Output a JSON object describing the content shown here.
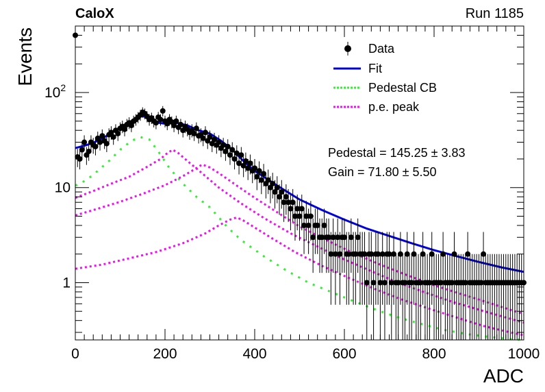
{
  "header": {
    "experiment": "CaloX",
    "run": "Run 1185"
  },
  "chart_data": {
    "type": "scatter",
    "xlabel": "ADC",
    "ylabel": "Events",
    "xlim": [
      0,
      1000
    ],
    "ylim": [
      0.25,
      500
    ],
    "yscale": "log",
    "x_ticks": [
      "0",
      "200",
      "400",
      "600",
      "800",
      "1000"
    ],
    "y_ticks": [
      {
        "value": 1,
        "label": "1"
      },
      {
        "value": 10,
        "label": "10"
      },
      {
        "value": 100,
        "label": "10",
        "exponent": "2"
      }
    ],
    "legend": {
      "placement": "top-right",
      "entries": [
        {
          "label": "Data",
          "style": "marker",
          "color": "#000000"
        },
        {
          "label": "Fit",
          "style": "solid",
          "color": "#0000dd"
        },
        {
          "label": "Pedestal CB",
          "style": "dotted",
          "color": "#33ee33"
        },
        {
          "label": "p.e. peak",
          "style": "dotted",
          "color": "#ee11ee"
        }
      ]
    },
    "annotations": [
      {
        "label": "Pedestal",
        "value": "145.25",
        "error": "3.83"
      },
      {
        "label": "Gain",
        "value": "71.80",
        "error": "5.50"
      }
    ],
    "fit": {
      "pedestal": 145.25,
      "gain": 71.8
    },
    "data_points": {
      "x": [
        0,
        5,
        10,
        15,
        20,
        25,
        30,
        35,
        40,
        45,
        50,
        55,
        60,
        65,
        70,
        75,
        80,
        85,
        90,
        95,
        100,
        105,
        110,
        115,
        120,
        125,
        130,
        135,
        140,
        145,
        150,
        155,
        160,
        165,
        170,
        175,
        180,
        185,
        190,
        195,
        200,
        205,
        210,
        215,
        220,
        225,
        230,
        235,
        240,
        245,
        250,
        255,
        260,
        265,
        270,
        275,
        280,
        285,
        290,
        295,
        300,
        305,
        310,
        315,
        320,
        325,
        330,
        335,
        340,
        345,
        350,
        355,
        360,
        365,
        370,
        375,
        380,
        385,
        390,
        395,
        400,
        405,
        410,
        415,
        420,
        425,
        430,
        435,
        440,
        445,
        450,
        455,
        460,
        465,
        470,
        475,
        480,
        485,
        490,
        495,
        500,
        505,
        510,
        515,
        520,
        525,
        530,
        535,
        540,
        545,
        550,
        555,
        560,
        565,
        570,
        575,
        580,
        585,
        590,
        595,
        600,
        605,
        610,
        615,
        620,
        625,
        630,
        635,
        640,
        645,
        650,
        655,
        660,
        665,
        670,
        675,
        680,
        685,
        690,
        695,
        700,
        705,
        710,
        715,
        720,
        725,
        730,
        735,
        740,
        745,
        750,
        755,
        760,
        765,
        770,
        775,
        780,
        785,
        790,
        795,
        800,
        805,
        810,
        815,
        820,
        825,
        830,
        835,
        840,
        845,
        850,
        855,
        860,
        865,
        870,
        875,
        880,
        885,
        890,
        895,
        900,
        905,
        910,
        915,
        920,
        925,
        930,
        935,
        940,
        945,
        950,
        955,
        960,
        965,
        970,
        975,
        980,
        985,
        990,
        995,
        1000
      ],
      "y": [
        400,
        21,
        20,
        25,
        30,
        22,
        24,
        30,
        28,
        27,
        33,
        30,
        35,
        31,
        29,
        36,
        38,
        34,
        40,
        37,
        42,
        44,
        41,
        46,
        48,
        45,
        50,
        52,
        55,
        58,
        62,
        60,
        56,
        52,
        54,
        50,
        48,
        55,
        52,
        64,
        50,
        47,
        52,
        49,
        45,
        50,
        43,
        46,
        40,
        44,
        41,
        38,
        40,
        37,
        42,
        35,
        36,
        33,
        38,
        31,
        34,
        29,
        32,
        28,
        30,
        26,
        28,
        24,
        27,
        22,
        25,
        20,
        23,
        18,
        22,
        17,
        19,
        16,
        18,
        15,
        16,
        13,
        15,
        12,
        14,
        11,
        12,
        10,
        11,
        9,
        10,
        8,
        9,
        7,
        8,
        7,
        6,
        7,
        5,
        6,
        5,
        6,
        4,
        5,
        4,
        5,
        3,
        4,
        4,
        3,
        3,
        4,
        3,
        3,
        2,
        3,
        2,
        3,
        2,
        3,
        3,
        2,
        2,
        3,
        2,
        2,
        3,
        2,
        2,
        2,
        1,
        2,
        2,
        1,
        2,
        2,
        1,
        2,
        1,
        2,
        2,
        1,
        2,
        1,
        1,
        2,
        1,
        1,
        2,
        1,
        1,
        2,
        1,
        1,
        1,
        2,
        1,
        1,
        1,
        2,
        1,
        1,
        1,
        1,
        2,
        1,
        1,
        1,
        1,
        2,
        1,
        1,
        1,
        1,
        1,
        2,
        1,
        1,
        1,
        1,
        1,
        1,
        2,
        1,
        1,
        1,
        1,
        1,
        1,
        1,
        1,
        1,
        1,
        1,
        1,
        1,
        1,
        1,
        1,
        1,
        1
      ]
    },
    "fit_curve": {
      "x": [
        0,
        25,
        50,
        75,
        100,
        125,
        150,
        175,
        200,
        225,
        250,
        275,
        300,
        325,
        350,
        375,
        400,
        450,
        500,
        550,
        600,
        650,
        700,
        750,
        800,
        850,
        900,
        950,
        1000
      ],
      "y": [
        26,
        28,
        31,
        36,
        43,
        50,
        57,
        49,
        47,
        48,
        45,
        40,
        37,
        31,
        25,
        19,
        15,
        10.5,
        7.5,
        5.8,
        4.6,
        3.7,
        3.1,
        2.6,
        2.2,
        1.9,
        1.65,
        1.45,
        1.3
      ]
    },
    "pedestal_cb": {
      "x": [
        0,
        25,
        50,
        75,
        100,
        125,
        145,
        165,
        185,
        210,
        240,
        270,
        300,
        340,
        370,
        420,
        470,
        520,
        570,
        620,
        670,
        720,
        770,
        820,
        870,
        920,
        970,
        1000
      ],
      "y": [
        10.5,
        12,
        15,
        19,
        25,
        31,
        34,
        32,
        24,
        16,
        11,
        8,
        6.2,
        3.8,
        2.8,
        1.9,
        1.35,
        1.0,
        0.8,
        0.64,
        0.52,
        0.43,
        0.37,
        0.32,
        0.29,
        0.27,
        0.255,
        0.25
      ]
    },
    "pe_peaks": [
      {
        "x": [
          0,
          40,
          80,
          120,
          160,
          190,
          205,
          217,
          230,
          250,
          280,
          320,
          370,
          420,
          480,
          540,
          600,
          660,
          720,
          780,
          840,
          900,
          960,
          1000
        ],
        "y": [
          7.8,
          9.2,
          11,
          13,
          16.5,
          20,
          23,
          25,
          23,
          19,
          14.5,
          10,
          6.8,
          4.8,
          3.3,
          2.4,
          1.75,
          1.32,
          1.0,
          0.79,
          0.63,
          0.52,
          0.43,
          0.38
        ]
      },
      {
        "x": [
          0,
          50,
          100,
          150,
          200,
          240,
          265,
          283,
          300,
          320,
          360,
          400,
          450,
          500,
          560,
          620,
          680,
          740,
          800,
          860,
          920,
          980,
          1000
        ],
        "y": [
          5.1,
          6.0,
          7.1,
          8.6,
          10.6,
          13.2,
          15.5,
          17.5,
          16.3,
          14.2,
          10.5,
          7.8,
          5.5,
          3.9,
          2.8,
          2.05,
          1.55,
          1.2,
          0.94,
          0.76,
          0.62,
          0.5,
          0.47
        ]
      },
      {
        "x": [
          0,
          60,
          120,
          180,
          240,
          290,
          320,
          345,
          360,
          375,
          400,
          440,
          490,
          550,
          610,
          670,
          730,
          790,
          850,
          910,
          970,
          1000
        ],
        "y": [
          1.4,
          1.55,
          1.8,
          2.1,
          2.6,
          3.3,
          4.0,
          4.6,
          4.85,
          4.5,
          3.8,
          2.9,
          2.1,
          1.5,
          1.12,
          0.85,
          0.66,
          0.53,
          0.43,
          0.35,
          0.3,
          0.28
        ]
      }
    ],
    "colors": {
      "data": "#000000",
      "fit": "#0000dd",
      "pedestal": "#33ee33",
      "pe_peak": "#ee11ee"
    }
  }
}
